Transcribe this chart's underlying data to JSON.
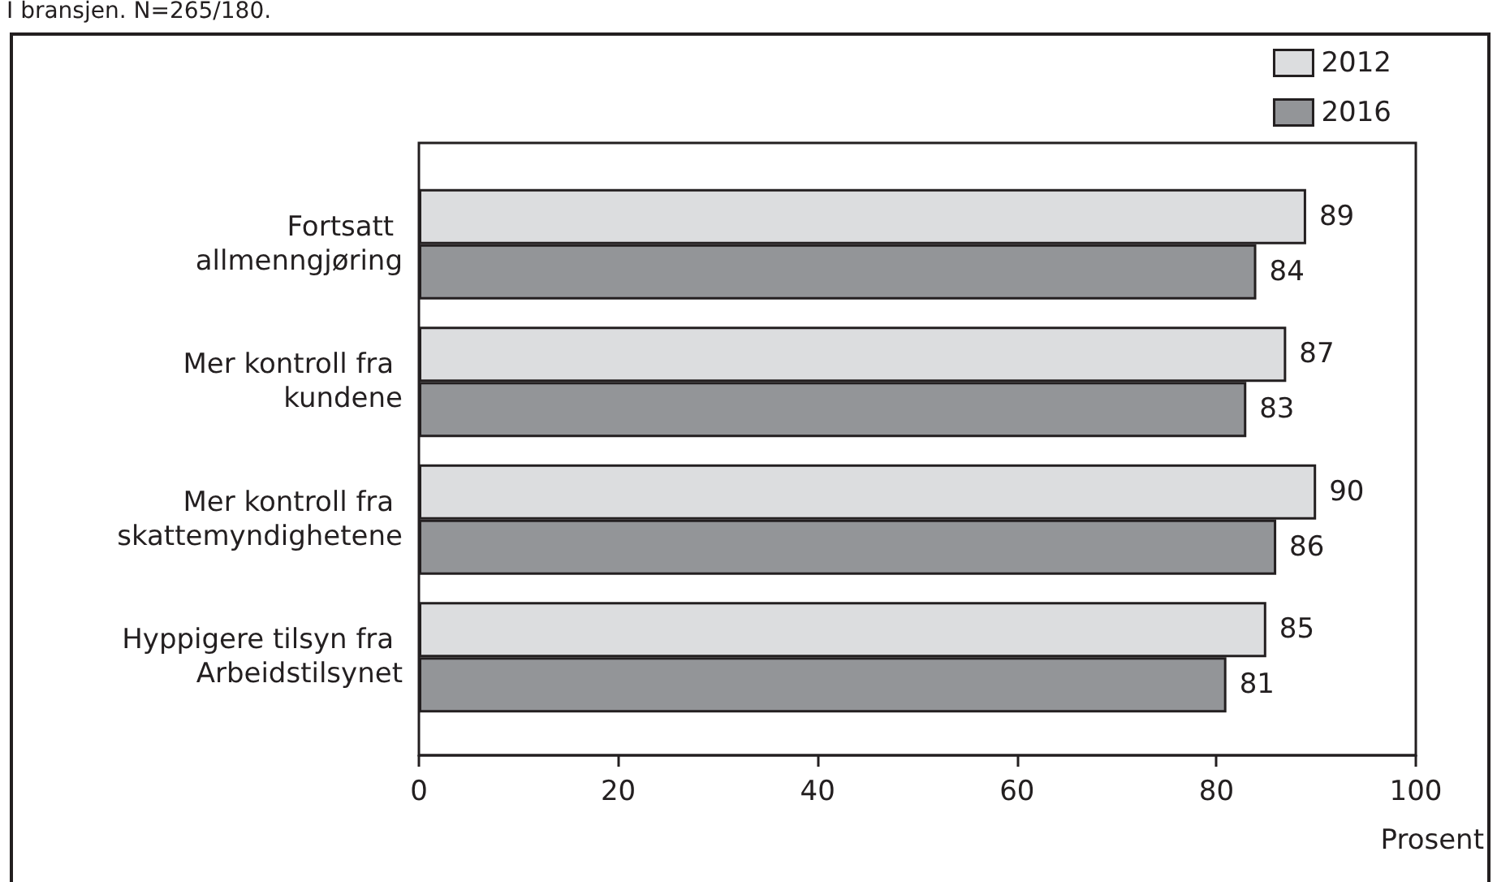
{
  "chart_data": {
    "type": "bar",
    "orientation": "horizontal",
    "subtitle": "I bransjen. N=265/180.",
    "categories": [
      "Fortsatt allmenngjøring",
      "Mer kontroll fra kundene",
      "Mer kontroll fra skattemyndighetene",
      "Hyppigere tilsyn fra Arbeidstilsynet"
    ],
    "series": [
      {
        "name": "2012",
        "color": "#dcdddf",
        "values": [
          89,
          87,
          90,
          85
        ]
      },
      {
        "name": "2016",
        "color": "#939598",
        "values": [
          84,
          83,
          86,
          81
        ]
      }
    ],
    "xlabel": "Prosent",
    "xlim": [
      0,
      100
    ],
    "xticks": [
      0,
      20,
      40,
      60,
      80,
      100
    ],
    "grid": false,
    "legend": "top right",
    "data_labels": true
  }
}
